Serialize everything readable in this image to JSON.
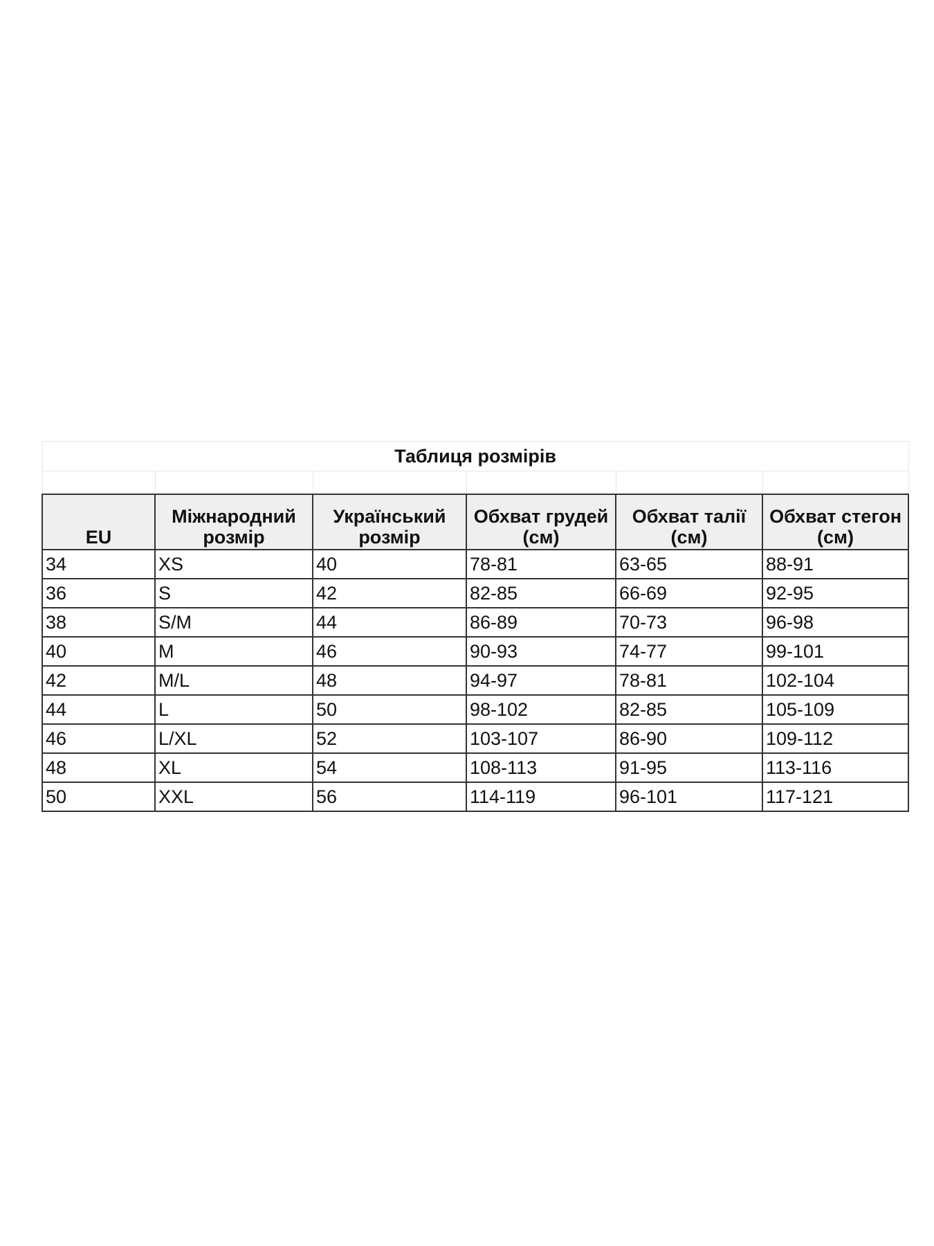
{
  "title": "Таблиця розмірів",
  "columns": [
    "EU",
    "Міжнародний розмір",
    "Український розмір",
    "Обхват грудей (см)",
    "Обхват талії (см)",
    "Обхват стегон (см)"
  ],
  "rows": [
    [
      "34",
      "XS",
      "40",
      "78-81",
      "63-65",
      "88-91"
    ],
    [
      "36",
      "S",
      "42",
      "82-85",
      "66-69",
      "92-95"
    ],
    [
      "38",
      "S/M",
      "44",
      "86-89",
      "70-73",
      "96-98"
    ],
    [
      "40",
      "M",
      "46",
      "90-93",
      "74-77",
      "99-101"
    ],
    [
      "42",
      "M/L",
      "48",
      "94-97",
      "78-81",
      "102-104"
    ],
    [
      "44",
      "L",
      "50",
      "98-102",
      "82-85",
      "105-109"
    ],
    [
      "46",
      "L/XL",
      "52",
      "103-107",
      "86-90",
      "109-112"
    ],
    [
      "48",
      "XL",
      "54",
      "108-113",
      "91-95",
      "113-116"
    ],
    [
      "50",
      "XXL",
      "56",
      "114-119",
      "96-101",
      "117-121"
    ]
  ]
}
